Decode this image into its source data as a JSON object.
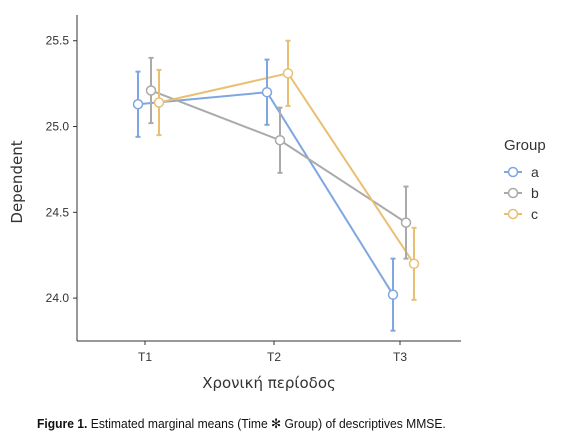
{
  "chart_data": {
    "type": "line",
    "title": "",
    "xlabel": "Χρονική περίοδος",
    "ylabel": "Dependent",
    "categories": [
      "T1",
      "T2",
      "T3"
    ],
    "ylim": [
      23.75,
      25.65
    ],
    "yticks": [
      24.0,
      24.5,
      25.0,
      25.5
    ],
    "ytick_labels": [
      "24.0",
      "24.5",
      "25.0",
      "25.5"
    ],
    "grid": false,
    "legend": {
      "title": "Group",
      "position": "right"
    },
    "series": [
      {
        "name": "a",
        "color": "#7fa6e0",
        "values": [
          25.13,
          25.2,
          24.02
        ],
        "lower": [
          24.94,
          25.01,
          23.81
        ],
        "upper": [
          25.32,
          25.39,
          24.23
        ]
      },
      {
        "name": "b",
        "color": "#aaaaaa",
        "values": [
          25.21,
          24.92,
          24.44
        ],
        "lower": [
          25.02,
          24.73,
          24.23
        ],
        "upper": [
          25.4,
          25.11,
          24.65
        ]
      },
      {
        "name": "c",
        "color": "#e9bf72",
        "values": [
          25.14,
          25.31,
          24.2
        ],
        "lower": [
          24.95,
          25.12,
          23.99
        ],
        "upper": [
          25.33,
          25.5,
          24.41
        ]
      }
    ]
  },
  "caption": {
    "label": "Figure 1.",
    "text": " Estimated marginal means (Time ✻ Group) of descriptives MMSE."
  }
}
